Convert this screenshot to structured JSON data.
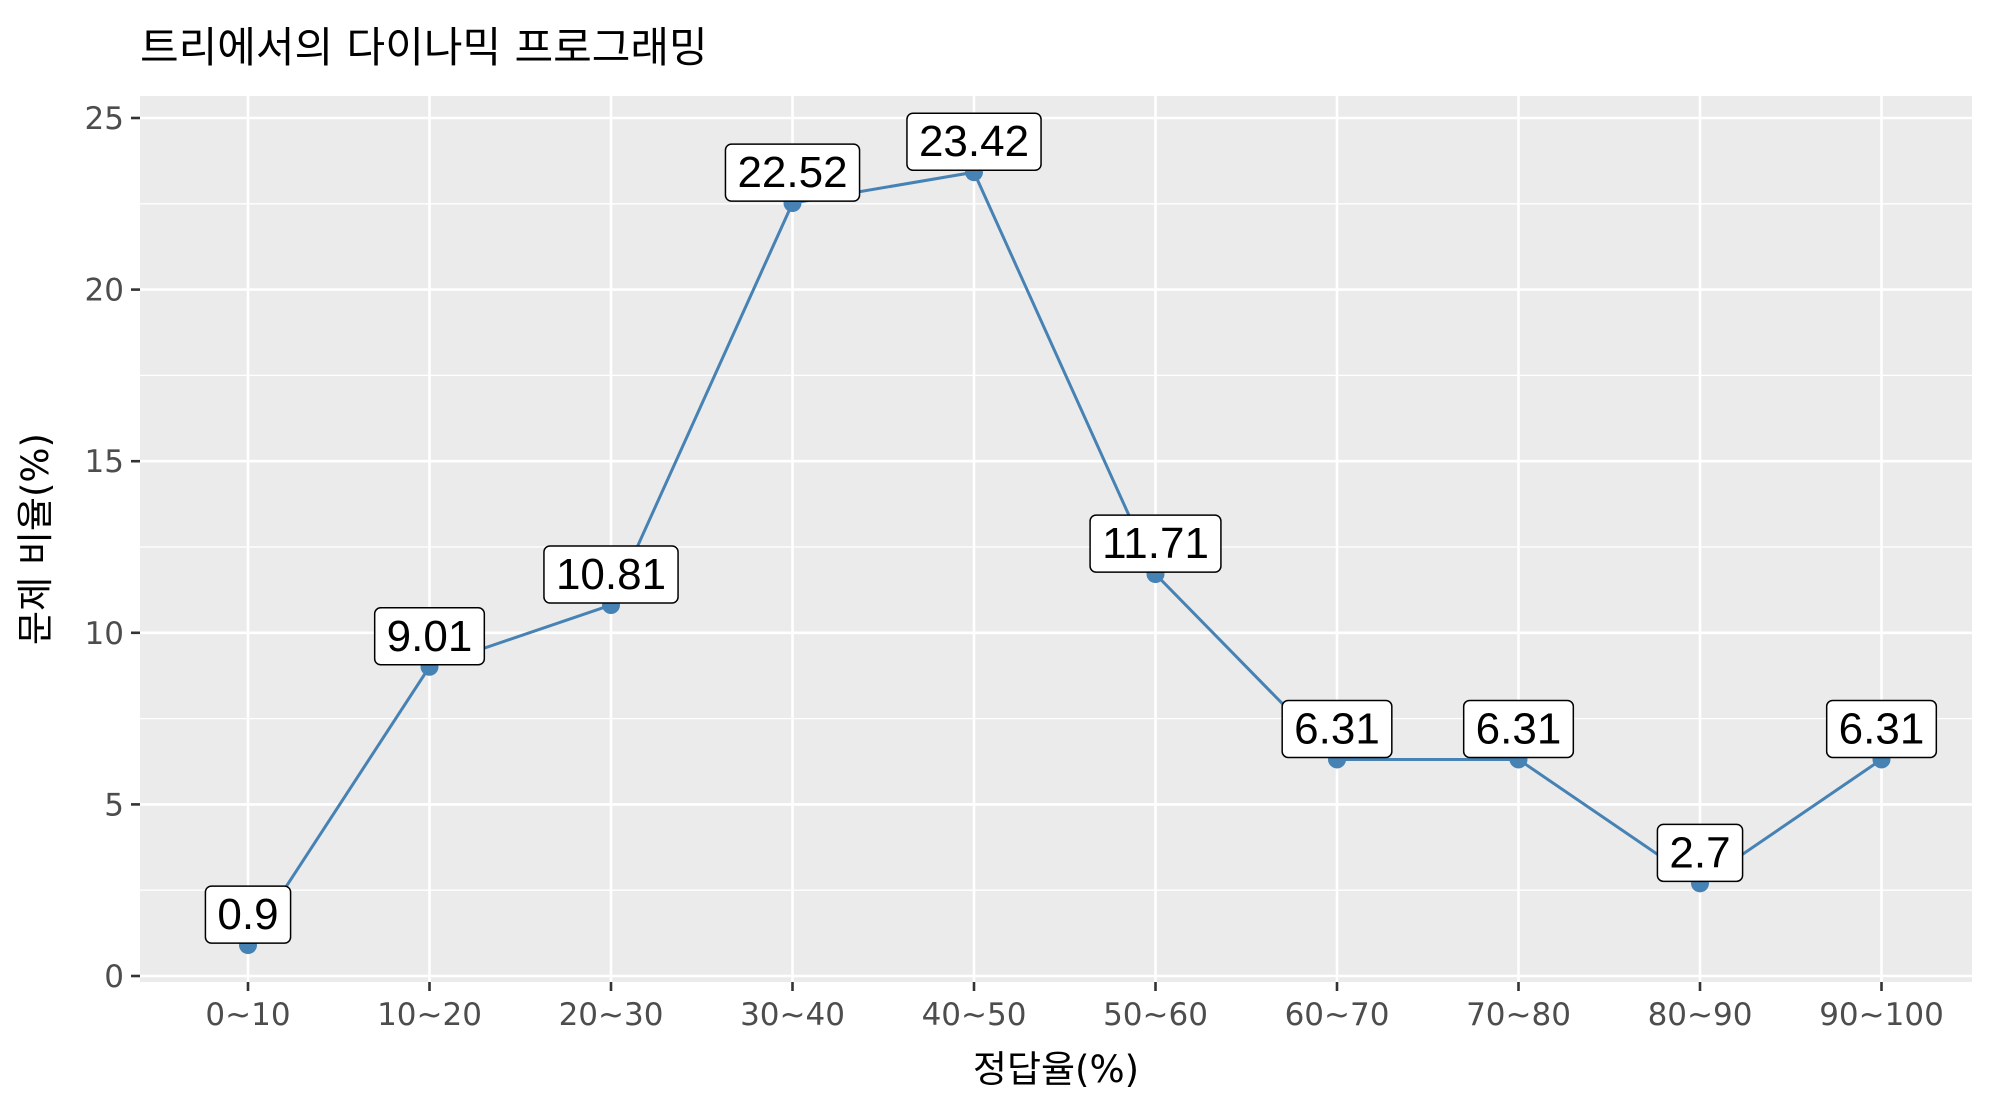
{
  "chart_data": {
    "type": "line",
    "title": "트리에서의 다이나믹 프로그래밍",
    "xlabel": "정답율(%)",
    "ylabel": "문제 비율(%)",
    "categories": [
      "0~10",
      "10~20",
      "20~30",
      "30~40",
      "40~50",
      "50~60",
      "60~70",
      "70~80",
      "80~90",
      "90~100"
    ],
    "values": [
      0.9,
      9.01,
      10.81,
      22.52,
      23.42,
      11.71,
      6.31,
      6.31,
      2.7,
      6.31
    ],
    "data_labels": [
      "0.9",
      "9.01",
      "10.81",
      "22.52",
      "23.42",
      "11.71",
      "6.31",
      "6.31",
      "2.7",
      "6.31"
    ],
    "ylim": [
      0,
      25
    ],
    "yticks": [
      0,
      5,
      10,
      15,
      20,
      25
    ],
    "ytick_labels": [
      "0",
      "5",
      "10",
      "15",
      "20",
      "25"
    ],
    "grid": true,
    "legend": "none",
    "colors": {
      "line": "#4682B4",
      "panel": "#EBEBEB",
      "grid": "#FFFFFF"
    }
  }
}
